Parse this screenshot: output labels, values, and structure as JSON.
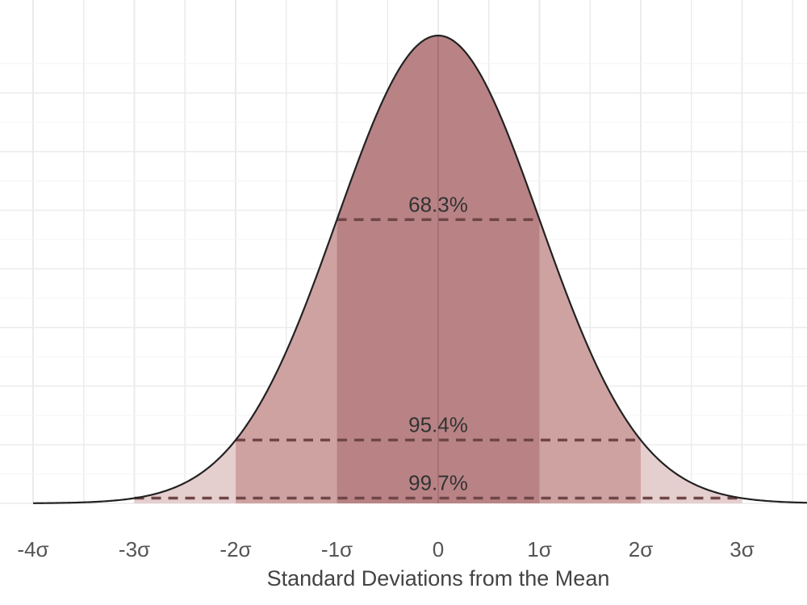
{
  "chart_data": {
    "type": "area",
    "title": "",
    "xlabel": "Standard Deviations from the Mean",
    "ylabel": "",
    "xlim": [
      -4,
      3.65
    ],
    "ylim": [
      0,
      0.399
    ],
    "grid": true,
    "distribution": "standard normal density",
    "x_ticks": [
      {
        "value": -4,
        "label": "-4σ"
      },
      {
        "value": -3,
        "label": "-3σ"
      },
      {
        "value": -2,
        "label": "-2σ"
      },
      {
        "value": -1,
        "label": "-1σ"
      },
      {
        "value": 0,
        "label": "0"
      },
      {
        "value": 1,
        "label": "1σ"
      },
      {
        "value": 2,
        "label": "2σ"
      },
      {
        "value": 3,
        "label": "3σ"
      }
    ],
    "bands": [
      {
        "from": -3,
        "to": 3,
        "label": "99.7%",
        "color": "#e5cfce"
      },
      {
        "from": -2,
        "to": 2,
        "label": "95.4%",
        "color": "#cfa2a2"
      },
      {
        "from": -1,
        "to": 1,
        "label": "68.3%",
        "color": "#b98386"
      }
    ],
    "colors": {
      "curve": "#222222",
      "dashed_line": "#6f4548",
      "grid": "#ebebeb",
      "mean_line": "#9e6b6e"
    }
  }
}
